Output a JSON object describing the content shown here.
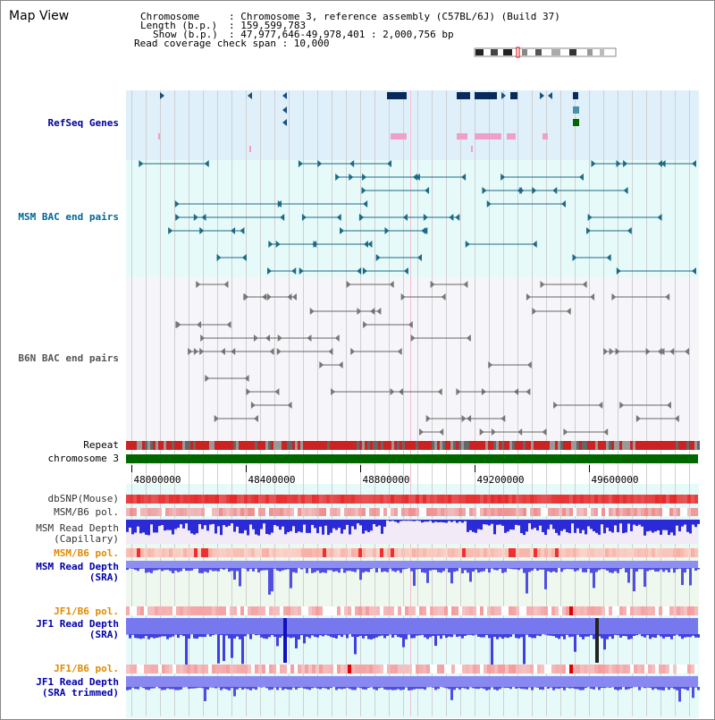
{
  "title": "Map View",
  "header": {
    "chrom_key": "Chromosome",
    "chrom_val": ": Chromosome 3, reference assembly (C57BL/6J) (Build 37)",
    "length_key": "Length (b.p.)",
    "length_val": ": 159,599,783",
    "show_key": "Show (b.p.)",
    "show_val": ": 47,977,646-49,978,401 : 2,000,756 bp",
    "coverage": "Read coverage check span : 10,000"
  },
  "tracks": {
    "refseq": "RefSeq Genes",
    "msm_bac": "MSM BAC end pairs",
    "b6n_bac": "B6N BAC end pairs",
    "repeat": "Repeat",
    "chromosome": "chromosome 3",
    "dbsnp": "dbSNP(Mouse)",
    "msm_pol1": "MSM/B6 pol.",
    "msm_depth_cap_1": "MSM Read Depth",
    "msm_depth_cap_2": "(Capillary)",
    "msm_pol2": "MSM/B6 pol.",
    "msm_depth_sra_1": "MSM Read Depth",
    "msm_depth_sra_2": "(SRA)",
    "jf1_pol1": "JF1/B6 pol.",
    "jf1_depth_sra_1": "JF1 Read Depth",
    "jf1_depth_sra_2": "(SRA)",
    "jf1_pol2": "JF1/B6 pol.",
    "jf1_depth_trim_1": "JF1 Read Depth",
    "jf1_depth_trim_2": "(SRA trimmed)"
  },
  "axis_ticks": [
    "48000000",
    "48400000",
    "48800000",
    "49200000",
    "49600000"
  ],
  "colors": {
    "refseq_bg": "#dff0fa",
    "msm_bac_bg": "#e6fafa",
    "b6n_bac_bg": "#f5f5fa",
    "refseq_label": "#000099",
    "msm_label": "#006699",
    "b6n_label": "#555555",
    "pol_label": "#e08a00",
    "depth_label": "#0000aa",
    "chromosome_green": "#006600"
  }
}
